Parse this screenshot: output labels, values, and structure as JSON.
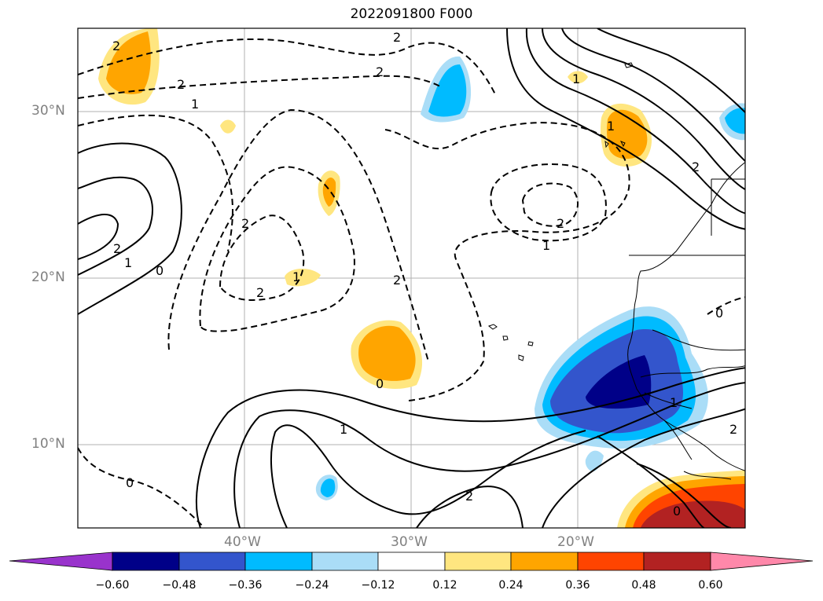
{
  "title": "2022091800 F000",
  "lat_labels": [
    "30°N",
    "20°N",
    "10°N"
  ],
  "lon_labels": [
    "40°W",
    "30°W",
    "20°W"
  ],
  "colorbar": {
    "ticks": [
      "−0.60",
      "−0.48",
      "−0.36",
      "−0.24",
      "−0.12",
      "0.12",
      "0.24",
      "0.36",
      "0.48",
      "0.60"
    ],
    "colors": [
      "#9933cc",
      "#000088",
      "#3355cc",
      "#00bbff",
      "#aaddf7",
      "#ffffff",
      "#ffe680",
      "#ffa500",
      "#ff4400",
      "#b22222",
      "#ff88aa"
    ],
    "extend": "both"
  },
  "contour_labels": [
    "2",
    "2",
    "2",
    "2",
    "2",
    "1",
    "2",
    "1",
    "2",
    "1",
    "0",
    "2",
    "2",
    "1",
    "1",
    "0",
    "1",
    "2",
    "1",
    "2",
    "0",
    "0",
    "1",
    "2",
    "0"
  ],
  "map": {
    "extent_lon": [
      -50,
      -10
    ],
    "extent_lat": [
      5,
      35
    ],
    "gridlines": true,
    "coastlines": true,
    "borders": true
  }
}
